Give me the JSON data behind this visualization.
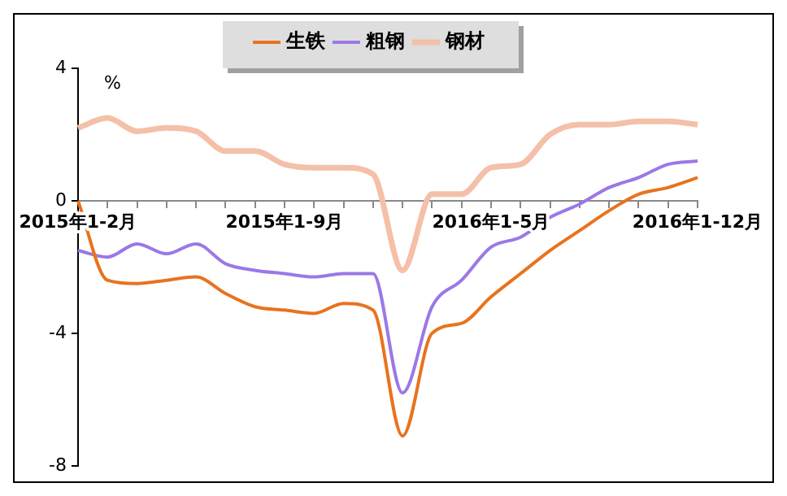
{
  "chart_data": {
    "type": "line",
    "ylabel": "%",
    "categories": [
      "2015年1-2月",
      null,
      null,
      null,
      null,
      null,
      null,
      "2015年1-9月",
      null,
      null,
      null,
      null,
      null,
      null,
      "2016年1-5月",
      null,
      null,
      null,
      null,
      null,
      null,
      "2016年1-12月"
    ],
    "series": [
      {
        "name": "生铁",
        "color": "#e8731e",
        "values": [
          0,
          -2.4,
          -2.5,
          -2.4,
          -2.3,
          -2.8,
          -3.2,
          -3.3,
          -3.4,
          -3.1,
          -3.3,
          -7.1,
          -4.0,
          -3.7,
          -2.9,
          -2.2,
          -1.5,
          -0.9,
          -0.3,
          0.2,
          0.4,
          0.7
        ]
      },
      {
        "name": "粗钢",
        "color": "#9b78e6",
        "values": [
          -1.5,
          -1.7,
          -1.3,
          -1.6,
          -1.3,
          -1.9,
          -2.1,
          -2.2,
          -2.3,
          -2.2,
          -2.2,
          -5.8,
          -3.2,
          -2.4,
          -1.4,
          -1.1,
          -0.5,
          -0.1,
          0.4,
          0.7,
          1.1,
          1.2
        ]
      },
      {
        "name": "钢材",
        "color": "#f4c0a8",
        "values": [
          2.2,
          2.5,
          2.1,
          2.2,
          2.1,
          1.5,
          1.5,
          1.1,
          1.0,
          1.0,
          0.8,
          -2.1,
          0.2,
          0.2,
          1.0,
          1.1,
          2.0,
          2.3,
          2.3,
          2.4,
          2.4,
          2.3
        ]
      }
    ],
    "ylim": [
      -8,
      4
    ],
    "yticks": [
      -8,
      -4,
      0,
      4
    ],
    "grid": false,
    "legend": "top",
    "marker": "none",
    "line_style": "solid"
  }
}
